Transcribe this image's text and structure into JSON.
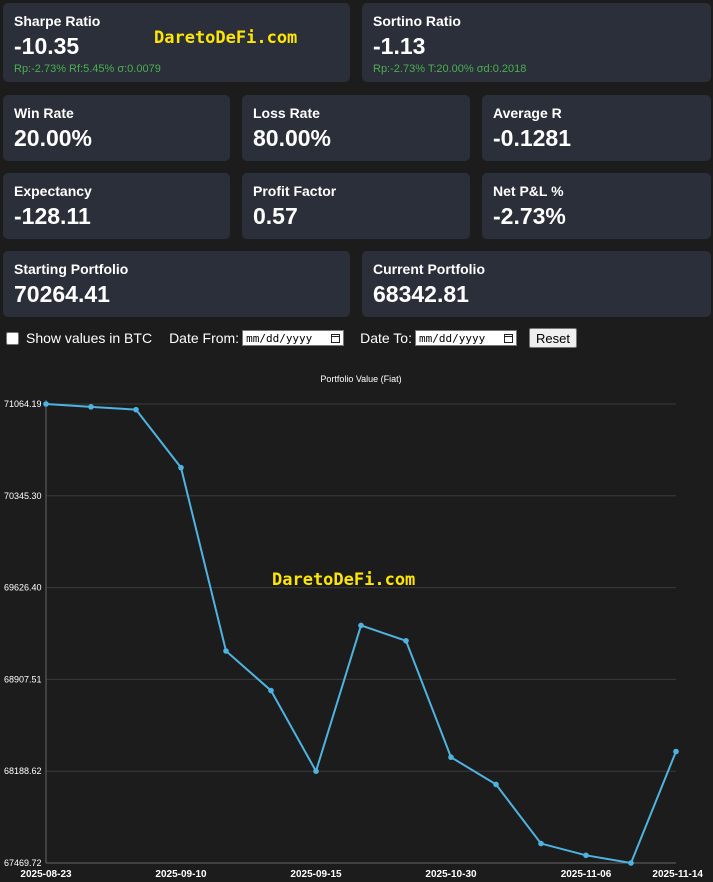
{
  "cards": {
    "sharpe": {
      "label": "Sharpe Ratio",
      "value": "-10.35",
      "sub": "Rp:-2.73% Rf:5.45% σ:0.0079"
    },
    "sortino": {
      "label": "Sortino Ratio",
      "value": "-1.13",
      "sub": "Rp:-2.73% T:20.00% σd:0.2018"
    },
    "win_rate": {
      "label": "Win Rate",
      "value": "20.00%"
    },
    "loss_rate": {
      "label": "Loss Rate",
      "value": "80.00%"
    },
    "average_r": {
      "label": "Average R",
      "value": "-0.1281"
    },
    "expectancy": {
      "label": "Expectancy",
      "value": "-128.11"
    },
    "profit_factor": {
      "label": "Profit Factor",
      "value": "0.57"
    },
    "net_pnl": {
      "label": "Net P&L %",
      "value": "-2.73%"
    },
    "starting_portfolio": {
      "label": "Starting Portfolio",
      "value": "70264.41"
    },
    "current_portfolio": {
      "label": "Current Portfolio",
      "value": "68342.81"
    }
  },
  "watermark": "DaretoDeFi.com",
  "controls": {
    "show_btc_label": "Show values in BTC",
    "date_from_label": "Date From:",
    "date_to_label": "Date To:",
    "date_placeholder": "mm/dd/yyyy",
    "reset_label": "Reset"
  },
  "colors": {
    "line": "#4fb3e0",
    "positive": "#4caf50",
    "watermark": "#ffe600"
  },
  "chart_data": {
    "type": "line",
    "title": "Portfolio Value (Fiat)",
    "xlabel": "",
    "ylabel": "",
    "y_ticks": [
      "71064.19",
      "70345.30",
      "69626.40",
      "68907.51",
      "68188.62",
      "67469.72"
    ],
    "ylim": [
      67469.72,
      71064.19
    ],
    "x_tick_labels": [
      "2025-08-23",
      "2025-09-10",
      "2025-09-15",
      "2025-10-30",
      "2025-11-06",
      "2025-11-14"
    ],
    "grid": true,
    "series": [
      {
        "values": [
          71064.19,
          71042,
          71020,
          70566,
          69130,
          68820,
          68188.62,
          69330,
          69210,
          68298,
          68085,
          67622,
          67530,
          67469.72,
          68342.81
        ]
      }
    ]
  }
}
